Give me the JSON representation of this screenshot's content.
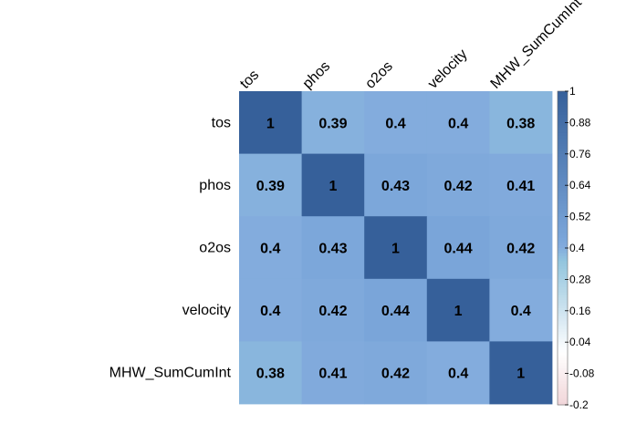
{
  "chart_data": {
    "type": "heatmap",
    "title": "",
    "row_labels": [
      "tos",
      "phos",
      "o2os",
      "velocity",
      "MHW_SumCumInt"
    ],
    "col_labels": [
      "tos",
      "phos",
      "o2os",
      "velocity",
      "MHW_SumCumInt"
    ],
    "matrix": [
      [
        1,
        0.39,
        0.4,
        0.4,
        0.38
      ],
      [
        0.39,
        1,
        0.43,
        0.42,
        0.41
      ],
      [
        0.4,
        0.43,
        1,
        0.44,
        0.42
      ],
      [
        0.4,
        0.42,
        0.44,
        1,
        0.4
      ],
      [
        0.38,
        0.41,
        0.42,
        0.4,
        1
      ]
    ],
    "value_range": [
      -0.2,
      1
    ],
    "colorbar": {
      "ticks": [
        "1",
        "0.88",
        "0.76",
        "0.64",
        "0.52",
        "0.4",
        "0.28",
        "0.16",
        "0.04",
        "-0.08",
        "-0.2"
      ],
      "tick_values": [
        1,
        0.88,
        0.76,
        0.64,
        0.52,
        0.4,
        0.28,
        0.16,
        0.04,
        -0.08,
        -0.2
      ],
      "placement": "right"
    },
    "colors": {
      "positive": "#2166ac",
      "neutral": "#ffffff",
      "negative": "#b2182b",
      "cell_text": "#000000"
    },
    "grid": false
  }
}
